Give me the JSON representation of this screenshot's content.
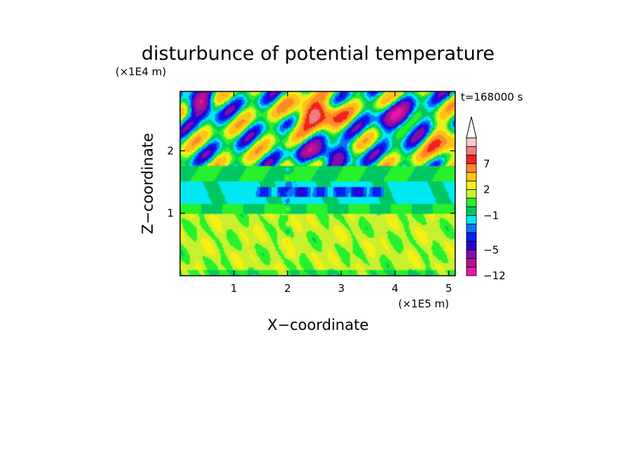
{
  "chart_data": {
    "type": "heatmap",
    "title": "disturbunce of potential temperature",
    "time_label": "t=168000 s",
    "xlabel": "X−coordinate",
    "ylabel": "Z−coordinate",
    "x_unit": "(×1E5 m)",
    "y_unit": "(×1E4 m)",
    "xlim": [
      0,
      5.12
    ],
    "ylim": [
      0,
      2.95
    ],
    "x_ticks": [
      {
        "value": 1,
        "label": "1"
      },
      {
        "value": 2,
        "label": "2"
      },
      {
        "value": 3,
        "label": "3"
      },
      {
        "value": 4,
        "label": "4"
      },
      {
        "value": 5,
        "label": "5"
      }
    ],
    "y_ticks": [
      {
        "value": 1,
        "label": "1"
      },
      {
        "value": 2,
        "label": "2"
      }
    ],
    "colorbar": {
      "levels": [
        -12,
        -9,
        -7,
        -5,
        -4,
        -3,
        -2,
        -1,
        0,
        1,
        2,
        3,
        5,
        7,
        9,
        12
      ],
      "labels": [
        {
          "level": 7,
          "label": "7"
        },
        {
          "level": 2,
          "label": "2"
        },
        {
          "level": -1,
          "label": "−1"
        },
        {
          "level": -5,
          "label": "−5"
        },
        {
          "level": -12,
          "label": "−12"
        }
      ],
      "colors": [
        "#e815ac",
        "#b5108f",
        "#7e0fa8",
        "#2800d4",
        "#0024ee",
        "#0a73f8",
        "#00e9f2",
        "#00c860",
        "#27f02c",
        "#c9f02f",
        "#f7ef10",
        "#ffc21a",
        "#ff8a28",
        "#f0231c",
        "#ef7d7d",
        "#f9c8c8"
      ],
      "extend": "max"
    }
  }
}
